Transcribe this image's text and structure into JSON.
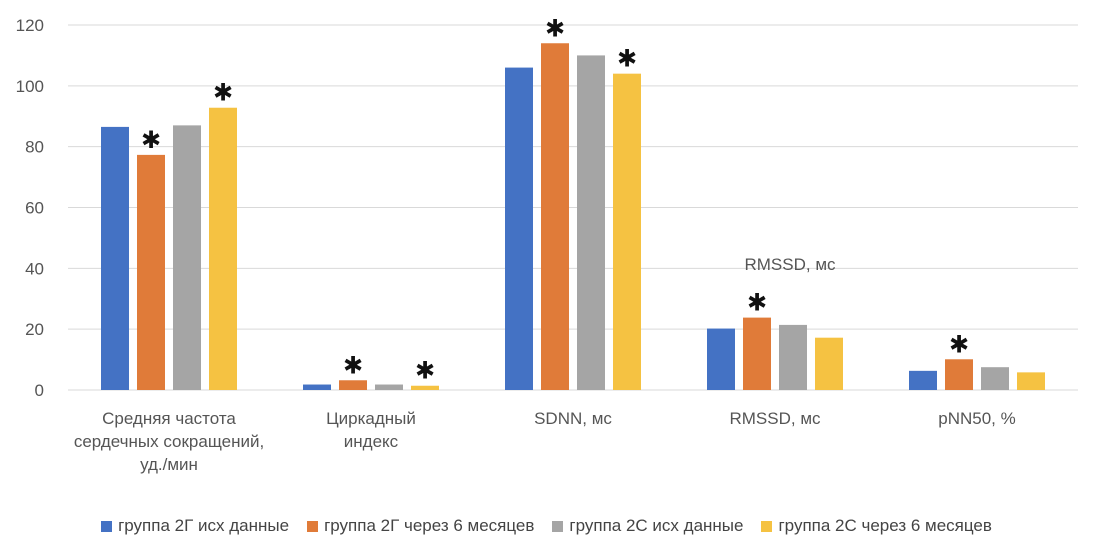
{
  "chart_data": {
    "type": "bar",
    "categories": [
      [
        "Средняя частота",
        "сердечных сокращений,",
        "уд./мин"
      ],
      [
        "Циркадный",
        "индекс"
      ],
      [
        "SDNN, мс"
      ],
      [
        "RMSSD, мс"
      ],
      [
        "pNN50, %"
      ]
    ],
    "series": [
      {
        "name": "группа 2Г исх данные",
        "color": "#4472C4",
        "values": [
          86.5,
          1.8,
          106,
          20.2,
          6.3
        ]
      },
      {
        "name": "группа 2Г через 6 месяцев",
        "color": "#E07B39",
        "values": [
          77.3,
          3.2,
          114,
          23.8,
          10.1
        ]
      },
      {
        "name": "группа 2С исх данные",
        "color": "#A5A5A5",
        "values": [
          87,
          1.8,
          110,
          21.4,
          7.5
        ]
      },
      {
        "name": "группа 2С через 6 месяцев",
        "color": "#F5C242",
        "values": [
          92.8,
          1.4,
          104,
          17.2,
          5.8
        ]
      }
    ],
    "significance": [
      [
        false,
        true,
        false,
        true
      ],
      [
        false,
        true,
        false,
        true
      ],
      [
        false,
        true,
        false,
        true
      ],
      [
        false,
        true,
        false,
        false
      ],
      [
        false,
        true,
        false,
        false
      ]
    ],
    "star_symbol": "✱",
    "annotation": {
      "text": "RMSSD, мс",
      "category_index": 3
    },
    "ylim": [
      0,
      120
    ],
    "yticks": [
      0,
      20,
      40,
      60,
      80,
      100,
      120
    ],
    "grid": true,
    "legend_position": "bottom",
    "title": "",
    "xlabel": "",
    "ylabel": ""
  }
}
